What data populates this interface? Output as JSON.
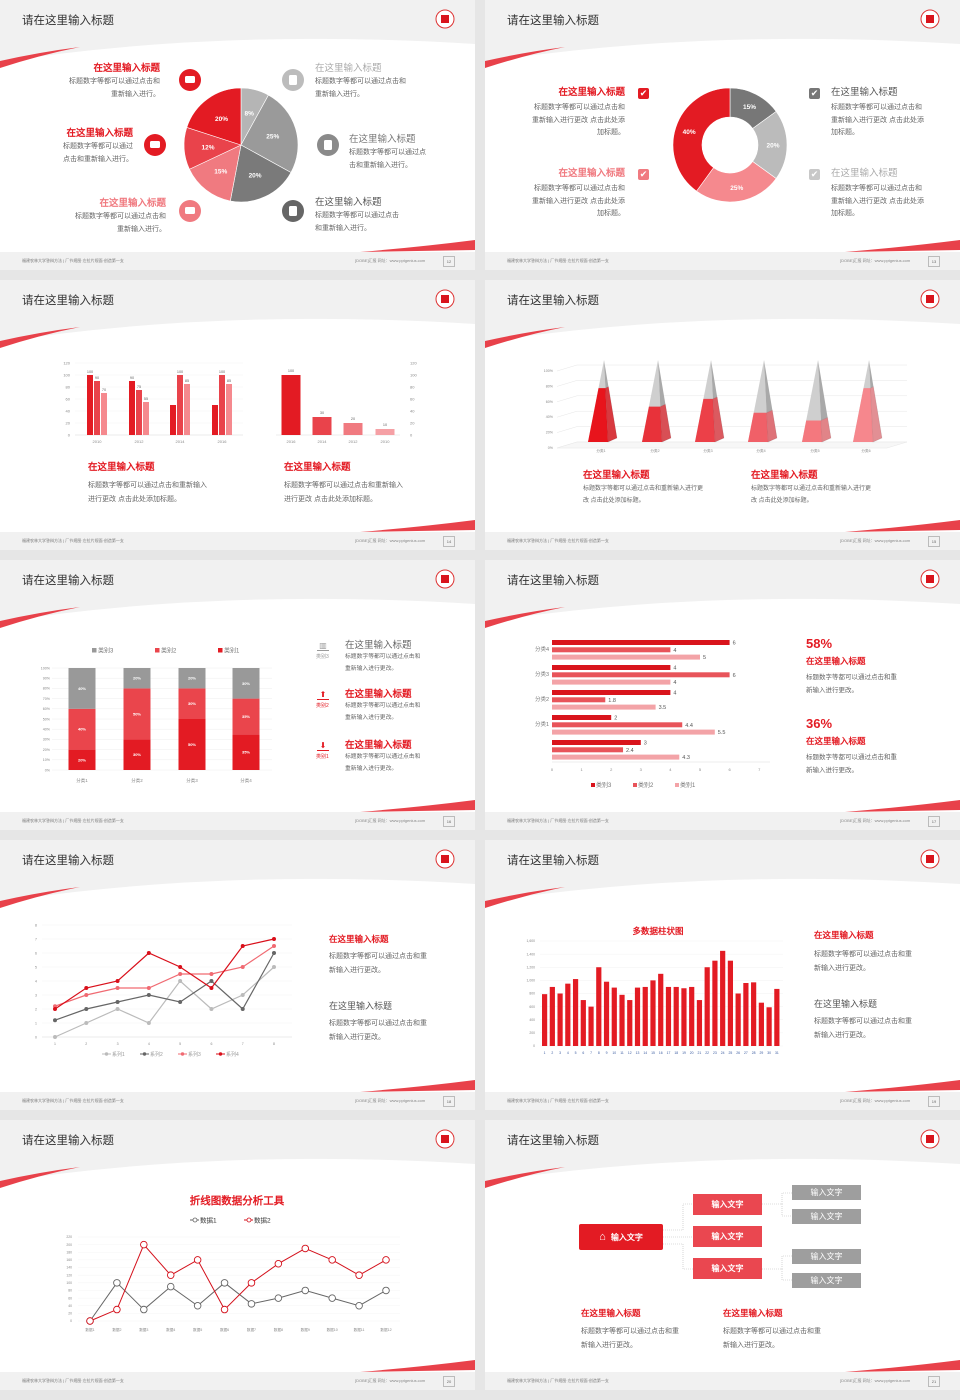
{
  "footer": {
    "left": "福建农林大学答辩方法 | 厂节规图·左拉片规面·创造第一支",
    "right": "[DOBE]汇报  网址：www.pptgenius.com"
  },
  "colors": {
    "red": "#e31b23",
    "red_mid": "#e9434b",
    "red_light": "#f07a80",
    "pink": "#f5a0a5",
    "gray_dark": "#6f6f6f",
    "gray": "#999999",
    "gray_light": "#bdbdbd"
  },
  "slides": [
    {
      "page": "12",
      "title": "请在这里输入标题",
      "items": [
        {
          "heading": "在这里输入标题",
          "icon": "monitor-icon",
          "body": [
            "标题数字等都可以通过点击和",
            "重新输入进行。"
          ]
        },
        {
          "heading": "在这里输入标题",
          "icon": "car-icon",
          "body": [
            "标题数字等都可以通过",
            "点击和重新输入进行。"
          ]
        },
        {
          "heading": "在这里输入标题",
          "icon": "book-icon",
          "body": [
            "标题数字等都可以通过点击和",
            "重新输入进行。"
          ]
        },
        {
          "heading": "在这里输入标题",
          "icon": "phone-icon",
          "body": [
            "标题数字等都可以通过点击和",
            "重新输入进行。"
          ]
        },
        {
          "heading": "在这里输入标题",
          "icon": "binoculars-icon",
          "body": [
            "标题数字等都可以通过点",
            "击和重新输入进行。"
          ]
        },
        {
          "heading": "在这里输入标题",
          "icon": "bicycle-icon",
          "body": [
            "标题数字等都可以通过点击",
            "和重新输入进行。"
          ]
        }
      ]
    },
    {
      "page": "13",
      "title": "请在这里输入标题",
      "items": [
        {
          "heading": "在这里输入标题",
          "checked": true,
          "body": [
            "标题数字等都可以通过点击和",
            "重新输入进行更改 点击此处添",
            "加标题。"
          ]
        },
        {
          "heading": "在这里输入标题",
          "checked": true,
          "body": [
            "标题数字等都可以通过点击和",
            "重新输入进行更改 点击此处添",
            "加标题。"
          ]
        },
        {
          "heading": "在这里输入标题",
          "checked": true,
          "body": [
            "标题数字等都可以通过点击和",
            "重新输入进行更改 点击此处添",
            "加标题。"
          ]
        },
        {
          "heading": "在这里输入标题",
          "checked": true,
          "body": [
            "标题数字等都可以通过点击和",
            "重新输入进行更改 点击此处添",
            "加标题。"
          ]
        }
      ]
    },
    {
      "page": "14",
      "title": "请在这里输入标题",
      "items": [
        {
          "heading": "在这里输入标题",
          "body": [
            "标题数字等都可以通过点击和重新输入",
            "进行更改 点击此处添加标题。"
          ]
        },
        {
          "heading": "在这里输入标题",
          "body": [
            "标题数字等都可以通过点击和重新输入",
            "进行更改 点击此处添加标题。"
          ]
        }
      ]
    },
    {
      "page": "15",
      "title": "请在这里输入标题",
      "items": [
        {
          "heading": "在这里输入标题",
          "body": [
            "标题数字等都可以通过点击和重新输入进行更",
            "改 点击此处添加标题。"
          ]
        },
        {
          "heading": "在这里输入标题",
          "body": [
            "标题数字等都可以通过点击和重新输入进行更",
            "改 点击此处添加标题。"
          ]
        }
      ]
    },
    {
      "page": "16",
      "title": "请在这里输入标题",
      "items": [
        {
          "heading": "在这里输入标题",
          "icon": "bar-chart-icon",
          "icon_label": "类别3",
          "body": [
            "标题数字等都可以通过点击和",
            "重新输入进行更改。"
          ]
        },
        {
          "heading": "在这里输入标题",
          "icon": "upload-icon",
          "icon_label": "类别2",
          "body": [
            "标题数字等都可以通过点击和",
            "重新输入进行更改。"
          ]
        },
        {
          "heading": "在这里输入标题",
          "icon": "download-icon",
          "icon_label": "类别1",
          "body": [
            "标题数字等都可以通过点击和",
            "重新输入进行更改。"
          ]
        }
      ]
    },
    {
      "page": "17",
      "title": "请在这里输入标题",
      "items": [
        {
          "percent": "58%",
          "heading": "在这里输入标题",
          "body": [
            "标题数字等都可以通过点击和重",
            "新输入进行更改。"
          ]
        },
        {
          "percent": "36%",
          "heading": "在这里输入标题",
          "body": [
            "标题数字等都可以通过点击和重",
            "新输入进行更改。"
          ]
        }
      ]
    },
    {
      "page": "18",
      "title": "请在这里输入标题",
      "items": [
        {
          "heading": "在这里输入标题",
          "body": [
            "标题数字等都可以通过点击和重",
            "新输入进行更改。"
          ]
        },
        {
          "heading": "在这里输入标题",
          "body": [
            "标题数字等都可以通过点击和重",
            "新输入进行更改。"
          ]
        }
      ]
    },
    {
      "page": "19",
      "title": "请在这里输入标题",
      "items": [
        {
          "heading": "在这里输入标题",
          "body": [
            "标题数字等都可以通过点击和重",
            "新输入进行更改。"
          ]
        },
        {
          "heading": "在这里输入标题",
          "body": [
            "标题数字等都可以通过点击和重",
            "新输入进行更改。"
          ]
        }
      ]
    },
    {
      "page": "20",
      "title": "请在这里输入标题",
      "items": []
    },
    {
      "page": "21",
      "title": "请在这里输入标题",
      "diagram": {
        "root": "输入文字",
        "root_icon": "home-icon",
        "middle": [
          "输入文字",
          "输入文字",
          "输入文字"
        ],
        "leaves": [
          "输入文字",
          "输入文字",
          "输入文字",
          "输入文字"
        ]
      },
      "items": [
        {
          "heading": "在这里输入标题",
          "body": [
            "标题数字等都可以通过点击和重",
            "新输入进行更改。"
          ]
        },
        {
          "heading": "在这里输入标题",
          "body": [
            "标题数字等都可以通过点击和重",
            "新输入进行更改。"
          ]
        }
      ]
    }
  ],
  "chart_data": [
    {
      "type": "pie",
      "labels": [
        "8%",
        "25%",
        "20%",
        "15%",
        "12%",
        "20%"
      ],
      "values": [
        8,
        25,
        20,
        15,
        12,
        20
      ],
      "colors": [
        "#b5b5b5",
        "#9a9a9a",
        "#7a7a7a",
        "#f07a80",
        "#e9434b",
        "#e31b23"
      ]
    },
    {
      "type": "pie",
      "donut": true,
      "labels": [
        "15%",
        "20%",
        "25%",
        "40%"
      ],
      "values": [
        15,
        20,
        25,
        40
      ],
      "colors": [
        "#777777",
        "#bbbbbb",
        "#f5898e",
        "#e31b23"
      ]
    },
    {
      "type": "bar",
      "categories": [
        "2010",
        "2012",
        "2014",
        "2016"
      ],
      "ylim": [
        0,
        120
      ],
      "yticks": [
        "0",
        "20",
        "40",
        "60",
        "80",
        "100",
        "120"
      ],
      "series": [
        {
          "values": [
            100,
            90,
            50,
            50
          ],
          "labels": [
            "100",
            "90",
            null,
            null
          ]
        },
        {
          "values": [
            90,
            75,
            100,
            100
          ],
          "labels": [
            "90",
            "75",
            "100",
            "100"
          ]
        },
        {
          "values": [
            70,
            55,
            85,
            85
          ],
          "labels": [
            "70",
            "55",
            "85",
            "85"
          ]
        }
      ],
      "colors": [
        "#e31b23",
        "#e9434b",
        "#f5898e"
      ]
    },
    {
      "type": "bar",
      "categories": [
        "2016",
        "2014",
        "2012",
        "2010"
      ],
      "values": [
        100,
        30,
        20,
        10
      ],
      "labels": [
        "100",
        "30",
        "20",
        "10"
      ],
      "ylim": [
        0,
        120
      ],
      "yticks": [
        "0",
        "20",
        "40",
        "60",
        "80",
        "100",
        "120"
      ],
      "colors": [
        "#e31b23",
        "#e9434b",
        "#f07a80",
        "#f5a0a5"
      ]
    },
    {
      "type": "bar",
      "style": "3d-pyramid",
      "categories": [
        "分类1",
        "分类2",
        "分类3",
        "分类4",
        "分类5",
        "分类6"
      ],
      "values": [
        70,
        46,
        56,
        38,
        28,
        70
      ],
      "ylim": [
        0,
        100
      ],
      "yticks": [
        "0%",
        "20%",
        "40%",
        "60%",
        "80%",
        "100%"
      ],
      "colors": [
        "#e8141c",
        "#e8323a",
        "#ec4048",
        "#f06068",
        "#f4787e",
        "#f6878d"
      ]
    },
    {
      "type": "bar",
      "stacked": true,
      "categories": [
        "分类1",
        "分类2",
        "分类3",
        "分类4"
      ],
      "ylim": [
        0,
        100
      ],
      "yticks": [
        "0%",
        "10%",
        "20%",
        "30%",
        "40%",
        "50%",
        "60%",
        "70%",
        "80%",
        "90%",
        "100%"
      ],
      "legend": "top",
      "series": [
        {
          "name": "类别1",
          "values": [
            20,
            30,
            50,
            35
          ],
          "color": "#e31b23"
        },
        {
          "name": "类别2",
          "values": [
            40,
            50,
            30,
            35
          ],
          "color": "#ea454c"
        },
        {
          "name": "类别3",
          "values": [
            40,
            20,
            20,
            30
          ],
          "color": "#999999"
        }
      ]
    },
    {
      "type": "bar",
      "orientation": "horizontal",
      "xlim": [
        0,
        7
      ],
      "xticks": [
        "0",
        "1",
        "2",
        "3",
        "4",
        "5",
        "6",
        "7"
      ],
      "legend": "bottom",
      "groups": [
        {
          "label": "分类4",
          "values": [
            6,
            4,
            5
          ]
        },
        {
          "label": "分类3",
          "values": [
            4,
            6,
            4
          ]
        },
        {
          "label": "分类2",
          "values": [
            4,
            1.8,
            3.5
          ]
        },
        {
          "label": "分类1",
          "values": [
            2,
            4.4,
            5.5
          ]
        },
        {
          "label": "",
          "values": [
            3,
            2.4,
            4.3
          ]
        }
      ],
      "series": [
        {
          "name": "类别3",
          "color": "#d9141c"
        },
        {
          "name": "类别2",
          "color": "#e8545a"
        },
        {
          "name": "类别1",
          "color": "#f3a3a7"
        }
      ]
    },
    {
      "type": "line",
      "x": [
        "1",
        "2",
        "3",
        "4",
        "5",
        "6",
        "7",
        "8"
      ],
      "ylim": [
        0,
        8
      ],
      "yticks": [
        "0",
        "1",
        "2",
        "3",
        "4",
        "5",
        "6",
        "7",
        "8"
      ],
      "legend": "bottom",
      "series": [
        {
          "name": "系列1",
          "values": [
            0,
            1,
            2,
            1,
            4,
            2,
            3,
            5
          ],
          "color": "#bbbbbb"
        },
        {
          "name": "系列2",
          "values": [
            1.2,
            2,
            2.5,
            3,
            2.5,
            4,
            2,
            6
          ],
          "color": "#666666"
        },
        {
          "name": "系列3",
          "values": [
            2.2,
            3,
            3.5,
            3.5,
            4.5,
            4.5,
            5,
            6.5
          ],
          "color": "#f06a72"
        },
        {
          "name": "系列4",
          "values": [
            2,
            3.5,
            4,
            6,
            5,
            3.5,
            6.5,
            7
          ],
          "color": "#d90f1a"
        }
      ]
    },
    {
      "type": "bar",
      "title": "多数据柱状图",
      "categories": [
        "1",
        "2",
        "3",
        "4",
        "5",
        "6",
        "7",
        "8",
        "9",
        "10",
        "11",
        "12",
        "13",
        "14",
        "15",
        "16",
        "17",
        "18",
        "19",
        "20",
        "21",
        "22",
        "23",
        "24",
        "25",
        "26",
        "27",
        "28",
        "29",
        "30",
        "31"
      ],
      "values": [
        790,
        900,
        800,
        950,
        1020,
        700,
        600,
        1200,
        980,
        890,
        780,
        700,
        890,
        900,
        1000,
        1100,
        900,
        900,
        880,
        900,
        700,
        1200,
        1300,
        1450,
        1300,
        800,
        960,
        970,
        660,
        590,
        870
      ],
      "ylim": [
        0,
        1600
      ],
      "yticks": [
        "0",
        "200",
        "400",
        "600",
        "800",
        "1,000",
        "1,200",
        "1,400",
        "1,600"
      ],
      "color": "#e31b23"
    },
    {
      "type": "line",
      "title": "折线图数据分析工具",
      "x": [
        "数据1",
        "数据2",
        "数据3",
        "数据4",
        "数据5",
        "数据6",
        "数据7",
        "数据8",
        "数据9",
        "数据10",
        "数据11",
        "数据12"
      ],
      "ylim": [
        0,
        220
      ],
      "yticks": [
        "0",
        "20",
        "40",
        "60",
        "80",
        "100",
        "120",
        "140",
        "160",
        "180",
        "200",
        "220"
      ],
      "legend": "top",
      "series": [
        {
          "name": "数据1",
          "values": [
            0,
            100,
            30,
            90,
            40,
            100,
            45,
            60,
            80,
            60,
            40,
            80
          ],
          "color": "#666666"
        },
        {
          "name": "数据2",
          "values": [
            0,
            30,
            200,
            120,
            160,
            30,
            100,
            150,
            190,
            160,
            120,
            160
          ],
          "color": "#d4101b"
        }
      ]
    }
  ]
}
